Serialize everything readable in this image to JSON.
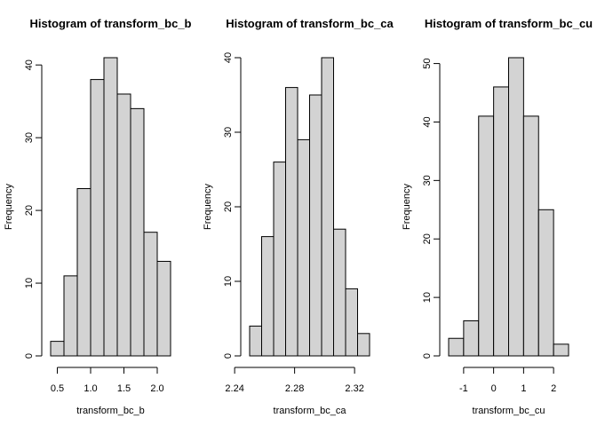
{
  "chart_data": [
    {
      "type": "histogram",
      "title": "Histogram of transform_bc_b",
      "x_label": "transform_bc_b",
      "y_label": "Frequency",
      "bins": [
        0.4,
        0.6,
        0.8,
        1.0,
        1.2,
        1.4,
        1.6,
        1.8,
        2.0,
        2.2
      ],
      "values": [
        2,
        11,
        23,
        38,
        41,
        36,
        34,
        17,
        13
      ],
      "color": "#d3d3d3",
      "xlim": [
        0.4,
        2.2
      ],
      "xticks": [
        0.5,
        {
          "value": 1,
          "label": "1.0"
        },
        1.5,
        {
          "value": 2,
          "label": "2.0"
        }
      ],
      "ylim": [
        0,
        41
      ],
      "yticks": [
        0,
        10,
        20,
        30,
        40
      ]
    },
    {
      "type": "histogram",
      "title": "Histogram of transform_bc_ca",
      "x_label": "transform_bc_ca",
      "y_label": "Frequency",
      "bins": [
        2.25,
        2.258,
        2.266,
        2.274,
        2.282,
        2.29,
        2.298,
        2.306,
        2.314,
        2.322,
        2.33
      ],
      "values": [
        4,
        16,
        26,
        36,
        29,
        35,
        40,
        17,
        9,
        3
      ],
      "color": "#d3d3d3",
      "xlim": [
        2.25,
        2.33
      ],
      "xticks": [
        2.24,
        2.28,
        2.32
      ],
      "ylim": [
        0,
        40
      ],
      "yticks": [
        0,
        10,
        20,
        30,
        40
      ]
    },
    {
      "type": "histogram",
      "title": "Histogram of transform_bc_cu",
      "x_label": "transform_bc_cu",
      "y_label": "Frequency",
      "bins": [
        -1.5,
        -1,
        -0.5,
        0,
        0.5,
        1,
        1.5,
        2,
        2.5
      ],
      "values": [
        3,
        6,
        41,
        46,
        51,
        41,
        25,
        2
      ],
      "color": "#d3d3d3",
      "xlim": [
        -1.5,
        2.5
      ],
      "xticks": [
        -1,
        0,
        1,
        2
      ],
      "ylim": [
        0,
        51
      ],
      "yticks": [
        0,
        10,
        20,
        30,
        40,
        50
      ]
    }
  ]
}
